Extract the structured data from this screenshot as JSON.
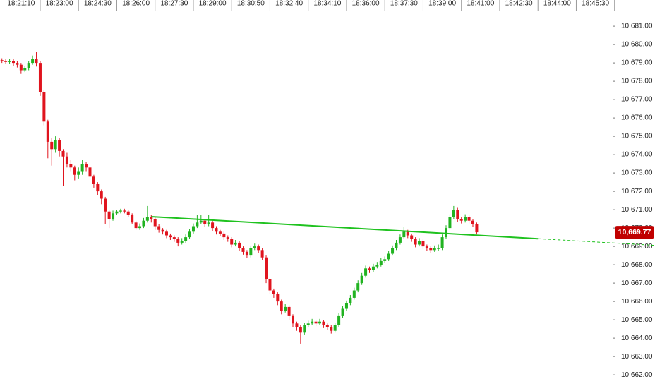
{
  "chart_data": {
    "type": "candlestick",
    "up_color": "#21b321",
    "down_color": "#e0141e",
    "xlim": [
      -0.5,
      159.5
    ],
    "xticks": [
      {
        "value": 5,
        "label": "18:21:10"
      },
      {
        "value": 15,
        "label": "18:23:00"
      },
      {
        "value": 25,
        "label": "18:24:30"
      },
      {
        "value": 35,
        "label": "18:26:00"
      },
      {
        "value": 45,
        "label": "18:27:30"
      },
      {
        "value": 55,
        "label": "18:29:00"
      },
      {
        "value": 65,
        "label": "18:30:50"
      },
      {
        "value": 75,
        "label": "18:32:40"
      },
      {
        "value": 85,
        "label": "18:34:10"
      },
      {
        "value": 95,
        "label": "18:36:00"
      },
      {
        "value": 105,
        "label": "18:37:30"
      },
      {
        "value": 115,
        "label": "18:39:00"
      },
      {
        "value": 125,
        "label": "18:41:00"
      },
      {
        "value": 135,
        "label": "18:42:30"
      },
      {
        "value": 145,
        "label": "18:44:00"
      },
      {
        "value": 155,
        "label": "18:45:30"
      }
    ],
    "ylim": [
      10661.12,
      10681.85
    ],
    "yticks": [
      {
        "value": 10681,
        "label": "10,681.00"
      },
      {
        "value": 10680,
        "label": "10,680.00"
      },
      {
        "value": 10679,
        "label": "10,679.00"
      },
      {
        "value": 10678,
        "label": "10,678.00"
      },
      {
        "value": 10677,
        "label": "10,677.00"
      },
      {
        "value": 10676,
        "label": "10,676.00"
      },
      {
        "value": 10675,
        "label": "10,675.00"
      },
      {
        "value": 10674,
        "label": "10,674.00"
      },
      {
        "value": 10673,
        "label": "10,673.00"
      },
      {
        "value": 10672,
        "label": "10,672.00"
      },
      {
        "value": 10671,
        "label": "10,671.00"
      },
      {
        "value": 10670,
        "label": "10,670.00"
      },
      {
        "value": 10669,
        "label": "10,669.00"
      },
      {
        "value": 10668,
        "label": "10,668.00"
      },
      {
        "value": 10667,
        "label": "10,667.00"
      },
      {
        "value": 10666,
        "label": "10,666.00"
      },
      {
        "value": 10665,
        "label": "10,665.00"
      },
      {
        "value": 10664,
        "label": "10,664.00"
      },
      {
        "value": 10663,
        "label": "10,663.00"
      },
      {
        "value": 10662,
        "label": "10,662.00"
      }
    ],
    "last_price": {
      "value": 10669.77,
      "label": "10,669.77",
      "color": "#c00000"
    },
    "trendline": {
      "x": [
        39,
        140
      ],
      "y": [
        10670.62,
        10669.42
      ],
      "color": "#1fc21f"
    },
    "candles": [
      [
        10679.15,
        10679.25,
        10679.0,
        10679.1
      ],
      [
        10679.1,
        10679.2,
        10678.95,
        10679.05
      ],
      [
        10679.05,
        10679.2,
        10678.95,
        10679.1
      ],
      [
        10679.1,
        10679.2,
        10678.85,
        10679.0
      ],
      [
        10679.0,
        10679.1,
        10678.75,
        10678.9
      ],
      [
        10678.9,
        10679.0,
        10678.4,
        10678.6
      ],
      [
        10678.6,
        10678.85,
        10678.5,
        10678.7
      ],
      [
        10678.7,
        10679.1,
        10678.6,
        10679.0
      ],
      [
        10679.0,
        10679.4,
        10678.9,
        10679.2
      ],
      [
        10679.2,
        10679.6,
        10678.8,
        10679.0
      ],
      [
        10679.0,
        10679.1,
        10677.2,
        10677.4
      ],
      [
        10677.4,
        10677.5,
        10675.6,
        10675.8
      ],
      [
        10675.8,
        10675.9,
        10673.8,
        10674.7
      ],
      [
        10674.7,
        10674.9,
        10673.4,
        10674.3
      ],
      [
        10674.3,
        10675.0,
        10674.1,
        10674.8
      ],
      [
        10674.8,
        10674.9,
        10673.9,
        10674.2
      ],
      [
        10674.2,
        10674.3,
        10672.3,
        10673.9
      ],
      [
        10673.9,
        10674.1,
        10673.3,
        10673.5
      ],
      [
        10673.5,
        10673.7,
        10673.1,
        10673.3
      ],
      [
        10673.3,
        10673.4,
        10672.6,
        10672.9
      ],
      [
        10672.9,
        10673.3,
        10672.7,
        10673.1
      ],
      [
        10673.1,
        10673.7,
        10672.9,
        10673.5
      ],
      [
        10673.5,
        10673.6,
        10673.1,
        10673.3
      ],
      [
        10673.3,
        10673.4,
        10672.5,
        10672.8
      ],
      [
        10672.8,
        10672.9,
        10672.2,
        10672.4
      ],
      [
        10672.4,
        10672.5,
        10671.8,
        10672.0
      ],
      [
        10672.0,
        10672.1,
        10671.3,
        10671.6
      ],
      [
        10671.6,
        10671.7,
        10670.2,
        10670.9
      ],
      [
        10670.9,
        10671.0,
        10670.0,
        10670.5
      ],
      [
        10670.5,
        10670.95,
        10670.4,
        10670.8
      ],
      [
        10670.8,
        10671.0,
        10670.7,
        10670.9
      ],
      [
        10670.9,
        10671.05,
        10670.8,
        10670.95
      ],
      [
        10670.95,
        10671.05,
        10670.8,
        10670.9
      ],
      [
        10670.9,
        10671.0,
        10670.6,
        10670.7
      ],
      [
        10670.7,
        10670.8,
        10670.2,
        10670.3
      ],
      [
        10670.3,
        10670.4,
        10669.9,
        10670.0
      ],
      [
        10670.0,
        10670.25,
        10669.9,
        10670.1
      ],
      [
        10670.1,
        10670.55,
        10670.0,
        10670.4
      ],
      [
        10670.4,
        10671.2,
        10670.3,
        10670.6
      ],
      [
        10670.6,
        10670.7,
        10670.3,
        10670.5
      ],
      [
        10670.5,
        10670.6,
        10669.9,
        10670.1
      ],
      [
        10670.1,
        10670.2,
        10669.75,
        10669.9
      ],
      [
        10669.9,
        10670.0,
        10669.65,
        10669.8
      ],
      [
        10669.8,
        10669.9,
        10669.45,
        10669.6
      ],
      [
        10669.6,
        10669.7,
        10669.35,
        10669.5
      ],
      [
        10669.5,
        10669.6,
        10669.25,
        10669.4
      ],
      [
        10669.4,
        10669.5,
        10669.0,
        10669.2
      ],
      [
        10669.2,
        10669.45,
        10669.1,
        10669.3
      ],
      [
        10669.3,
        10669.65,
        10669.2,
        10669.5
      ],
      [
        10669.5,
        10669.95,
        10669.4,
        10669.8
      ],
      [
        10669.8,
        10670.25,
        10669.7,
        10670.1
      ],
      [
        10670.1,
        10670.7,
        10670.0,
        10670.3
      ],
      [
        10670.3,
        10670.7,
        10670.2,
        10670.4
      ],
      [
        10670.4,
        10670.5,
        10670.05,
        10670.2
      ],
      [
        10670.2,
        10670.7,
        10670.1,
        10670.3
      ],
      [
        10670.3,
        10670.4,
        10669.85,
        10670.0
      ],
      [
        10670.0,
        10670.1,
        10669.65,
        10669.8
      ],
      [
        10669.8,
        10669.9,
        10669.55,
        10669.7
      ],
      [
        10669.7,
        10669.8,
        10669.35,
        10669.5
      ],
      [
        10669.5,
        10669.6,
        10669.25,
        10669.4
      ],
      [
        10669.4,
        10669.5,
        10668.95,
        10669.1
      ],
      [
        10669.1,
        10669.35,
        10669.0,
        10669.2
      ],
      [
        10669.2,
        10669.3,
        10668.75,
        10668.9
      ],
      [
        10668.9,
        10669.0,
        10668.55,
        10668.7
      ],
      [
        10668.7,
        10668.8,
        10668.35,
        10668.5
      ],
      [
        10668.5,
        10669.05,
        10668.4,
        10668.9
      ],
      [
        10668.9,
        10669.15,
        10668.8,
        10669.0
      ],
      [
        10669.0,
        10669.1,
        10668.65,
        10668.8
      ],
      [
        10668.8,
        10668.9,
        10668.25,
        10668.4
      ],
      [
        10668.4,
        10668.5,
        10667.0,
        10667.2
      ],
      [
        10667.2,
        10667.3,
        10666.4,
        10666.6
      ],
      [
        10666.6,
        10666.7,
        10666.2,
        10666.4
      ],
      [
        10666.4,
        10666.5,
        10665.8,
        10666.0
      ],
      [
        10666.0,
        10666.1,
        10665.3,
        10665.5
      ],
      [
        10665.5,
        10665.85,
        10665.4,
        10665.7
      ],
      [
        10665.7,
        10665.8,
        10665.0,
        10665.2
      ],
      [
        10665.2,
        10665.3,
        10664.6,
        10664.8
      ],
      [
        10664.8,
        10664.9,
        10664.4,
        10664.6
      ],
      [
        10664.6,
        10664.7,
        10663.7,
        10664.3
      ],
      [
        10664.3,
        10664.85,
        10664.2,
        10664.7
      ],
      [
        10664.7,
        10664.95,
        10664.6,
        10664.8
      ],
      [
        10664.8,
        10665.05,
        10664.7,
        10664.9
      ],
      [
        10664.9,
        10665.0,
        10664.65,
        10664.8
      ],
      [
        10664.8,
        10665.05,
        10664.7,
        10664.9
      ],
      [
        10664.9,
        10665.0,
        10664.55,
        10664.7
      ],
      [
        10664.7,
        10664.8,
        10664.45,
        10664.6
      ],
      [
        10664.6,
        10664.7,
        10664.25,
        10664.4
      ],
      [
        10664.4,
        10664.85,
        10664.3,
        10664.7
      ],
      [
        10664.7,
        10665.35,
        10664.6,
        10665.2
      ],
      [
        10665.2,
        10665.75,
        10665.1,
        10665.6
      ],
      [
        10665.6,
        10666.05,
        10665.5,
        10665.9
      ],
      [
        10665.9,
        10666.35,
        10665.8,
        10666.2
      ],
      [
        10666.2,
        10666.75,
        10666.1,
        10666.6
      ],
      [
        10666.6,
        10667.15,
        10666.5,
        10667.0
      ],
      [
        10667.0,
        10667.55,
        10666.9,
        10667.4
      ],
      [
        10667.4,
        10667.95,
        10667.3,
        10667.8
      ],
      [
        10667.8,
        10667.9,
        10667.55,
        10667.7
      ],
      [
        10667.7,
        10668.05,
        10667.6,
        10667.9
      ],
      [
        10667.9,
        10668.15,
        10667.8,
        10668.0
      ],
      [
        10668.0,
        10668.35,
        10667.9,
        10668.2
      ],
      [
        10668.2,
        10668.45,
        10668.1,
        10668.3
      ],
      [
        10668.3,
        10668.75,
        10668.2,
        10668.6
      ],
      [
        10668.6,
        10669.05,
        10668.5,
        10668.9
      ],
      [
        10668.9,
        10669.35,
        10668.8,
        10669.2
      ],
      [
        10669.2,
        10669.65,
        10669.1,
        10669.5
      ],
      [
        10669.5,
        10670.05,
        10669.4,
        10669.8
      ],
      [
        10669.8,
        10669.9,
        10669.45,
        10669.6
      ],
      [
        10669.6,
        10669.7,
        10669.25,
        10669.4
      ],
      [
        10669.4,
        10669.5,
        10668.95,
        10669.1
      ],
      [
        10669.1,
        10669.45,
        10669.0,
        10669.3
      ],
      [
        10669.3,
        10669.4,
        10668.85,
        10669.0
      ],
      [
        10669.0,
        10669.1,
        10668.75,
        10668.9
      ],
      [
        10668.9,
        10669.0,
        10668.65,
        10668.8
      ],
      [
        10668.8,
        10669.05,
        10668.7,
        10668.9
      ],
      [
        10668.9,
        10669.1,
        10668.75,
        10668.9
      ],
      [
        10668.9,
        10669.65,
        10668.8,
        10669.5
      ],
      [
        10669.5,
        10670.15,
        10669.4,
        10670.0
      ],
      [
        10670.0,
        10670.75,
        10669.9,
        10670.6
      ],
      [
        10670.6,
        10671.2,
        10670.5,
        10671.0
      ],
      [
        10671.0,
        10671.1,
        10670.35,
        10670.5
      ],
      [
        10670.5,
        10670.6,
        10670.25,
        10670.4
      ],
      [
        10670.4,
        10670.75,
        10670.3,
        10670.6
      ],
      [
        10670.6,
        10670.7,
        10670.25,
        10670.4
      ],
      [
        10670.4,
        10670.5,
        10670.05,
        10670.2
      ],
      [
        10670.2,
        10670.3,
        10669.65,
        10669.77
      ]
    ]
  }
}
